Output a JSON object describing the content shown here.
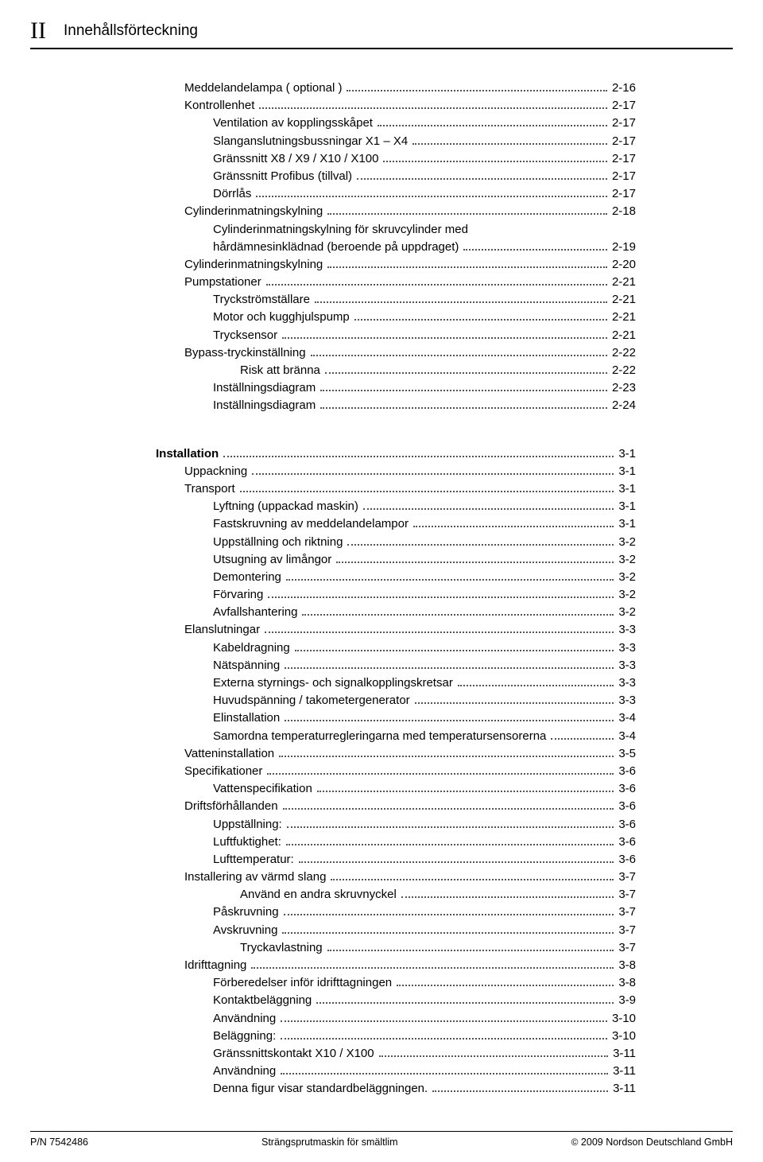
{
  "header": {
    "roman": "II",
    "title": "Innehållsförteckning"
  },
  "toc": [
    {
      "level": 1,
      "label": "Meddelandelampa ( optional )",
      "page": "2-16"
    },
    {
      "level": 1,
      "label": "Kontrollenhet",
      "page": "2-17"
    },
    {
      "level": 2,
      "label": "Ventilation av kopplingsskåpet",
      "page": "2-17"
    },
    {
      "level": 2,
      "label": "Slanganslutningsbussningar X1 – X4",
      "page": "2-17"
    },
    {
      "level": 2,
      "label": "Gränssnitt X8 / X9 / X10 / X100",
      "page": "2-17"
    },
    {
      "level": 2,
      "label": "Gränssnitt Profibus (tillval)",
      "page": "2-17"
    },
    {
      "level": 2,
      "label": "Dörrlås",
      "page": "2-17"
    },
    {
      "level": 1,
      "label": "Cylinderinmatningskylning",
      "page": "2-18"
    },
    {
      "level": 2,
      "label": "Cylinderinmatningskylning för skruvcylinder med"
    },
    {
      "level": 2,
      "label": "hårdämnesinklädnad (beroende på uppdraget)",
      "page": "2-19"
    },
    {
      "level": 1,
      "label": "Cylinderinmatningskylning",
      "page": "2-20"
    },
    {
      "level": 1,
      "label": "Pumpstationer",
      "page": "2-21"
    },
    {
      "level": 2,
      "label": "Tryckströmställare",
      "page": "2-21"
    },
    {
      "level": 2,
      "label": "Motor och kugghjulspump",
      "page": "2-21"
    },
    {
      "level": 2,
      "label": "Trycksensor",
      "page": "2-21"
    },
    {
      "level": 1,
      "label": "Bypass-tryckinställning",
      "page": "2-22"
    },
    {
      "level": 3,
      "label": "Risk att bränna",
      "page": "2-22"
    },
    {
      "level": 2,
      "label": "Inställningsdiagram",
      "page": "2-23"
    },
    {
      "level": 2,
      "label": "Inställningsdiagram",
      "page": "2-24"
    },
    {
      "gap": true
    },
    {
      "level": 0,
      "bold": true,
      "label": "Installation",
      "page": "3-1"
    },
    {
      "level": 1,
      "label": "Uppackning",
      "page": "3-1"
    },
    {
      "level": 1,
      "label": "Transport",
      "page": "3-1"
    },
    {
      "level": 2,
      "label": "Lyftning (uppackad maskin)",
      "page": "3-1"
    },
    {
      "level": 2,
      "label": "Fastskruvning av meddelandelampor",
      "page": "3-1"
    },
    {
      "level": 2,
      "label": "Uppställning och riktning",
      "page": "3-2"
    },
    {
      "level": 2,
      "label": "Utsugning av limångor",
      "page": "3-2"
    },
    {
      "level": 2,
      "label": "Demontering",
      "page": "3-2"
    },
    {
      "level": 2,
      "label": "Förvaring",
      "page": "3-2"
    },
    {
      "level": 2,
      "label": "Avfallshantering",
      "page": "3-2"
    },
    {
      "level": 1,
      "label": "Elanslutningar",
      "page": "3-3"
    },
    {
      "level": 2,
      "label": "Kabeldragning",
      "page": "3-3"
    },
    {
      "level": 2,
      "label": "Nätspänning",
      "page": "3-3"
    },
    {
      "level": 2,
      "label": "Externa styrnings- och signalkopplingskretsar",
      "page": "3-3"
    },
    {
      "level": 2,
      "label": "Huvudspänning / takometergenerator",
      "page": "3-3"
    },
    {
      "level": 2,
      "label": "Elinstallation",
      "page": "3-4"
    },
    {
      "level": 2,
      "label": "Samordna temperaturregleringarna med temperatursensorerna",
      "page": "3-4"
    },
    {
      "level": 1,
      "label": "Vatteninstallation",
      "page": "3-5"
    },
    {
      "level": 1,
      "label": "Specifikationer",
      "page": "3-6"
    },
    {
      "level": 2,
      "label": "Vattenspecifikation",
      "page": "3-6"
    },
    {
      "level": 1,
      "label": "Driftsförhållanden",
      "page": "3-6"
    },
    {
      "level": 2,
      "label": "Uppställning:",
      "page": "3-6"
    },
    {
      "level": 2,
      "label": "Luftfuktighet:",
      "page": "3-6"
    },
    {
      "level": 2,
      "label": "Lufttemperatur:",
      "page": "3-6"
    },
    {
      "level": 1,
      "label": "Installering av värmd slang",
      "page": "3-7"
    },
    {
      "level": 3,
      "label": "Använd en andra skruvnyckel",
      "page": "3-7"
    },
    {
      "level": 2,
      "label": "Påskruvning",
      "page": "3-7"
    },
    {
      "level": 2,
      "label": "Avskruvning",
      "page": "3-7"
    },
    {
      "level": 3,
      "label": "Tryckavlastning",
      "page": "3-7"
    },
    {
      "level": 1,
      "label": "Idrifttagning",
      "page": "3-8"
    },
    {
      "level": 2,
      "label": "Förberedelser inför idrifttagningen",
      "page": "3-8"
    },
    {
      "level": 2,
      "label": "Kontaktbeläggning",
      "page": "3-9"
    },
    {
      "level": 2,
      "label": "Användning",
      "page": "3-10"
    },
    {
      "level": 2,
      "label": "Beläggning:",
      "page": "3-10"
    },
    {
      "level": 2,
      "label": "Gränssnittskontakt  X10 / X100",
      "page": "3-11"
    },
    {
      "level": 2,
      "label": "Användning",
      "page": "3-11"
    },
    {
      "level": 2,
      "label": "Denna figur visar standardbeläggningen.",
      "page": "3-11"
    }
  ],
  "footer": {
    "left": "P/N 7542486",
    "center": "Strängsprutmaskin för smältlim",
    "right_symbol": "©",
    "right": "2009 Nordson Deutschland GmbH"
  }
}
